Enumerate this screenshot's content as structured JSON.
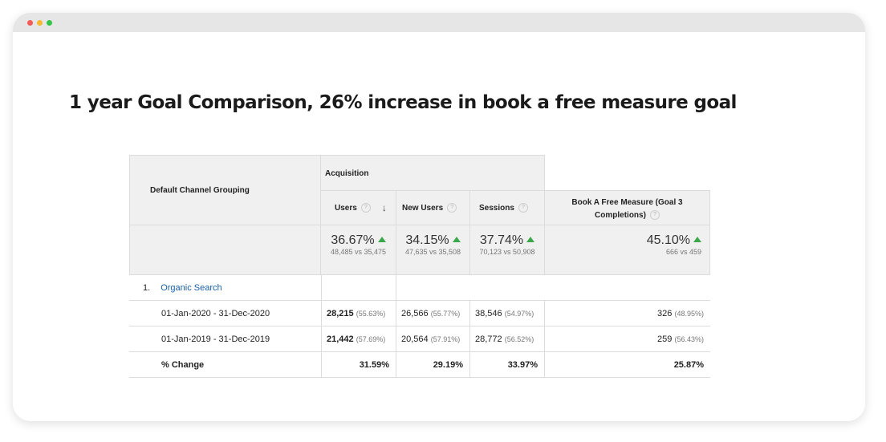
{
  "headline": "1 year Goal Comparison, 26% increase in book a free measure goal",
  "colors": {
    "accent_up": "#3aa84a",
    "link": "#1a5fa8",
    "header_bg": "#f0f0f0"
  },
  "icons": {
    "sort": "arrow-down-icon",
    "help": "question-icon",
    "up": "arrow-up-icon"
  },
  "table": {
    "dimension_header": "Default Channel Grouping",
    "group_header": "Acquisition",
    "columns": [
      {
        "label": "Users",
        "help": "?",
        "sort": "↓"
      },
      {
        "label": "New Users",
        "help": "?"
      },
      {
        "label": "Sessions",
        "help": "?"
      },
      {
        "label_line1": "Book A Free Measure (Goal 3",
        "label_line2": "Completions)",
        "help": "?"
      }
    ],
    "summary": [
      {
        "change": "36.67%",
        "compare": "48,485 vs 35,475"
      },
      {
        "change": "34.15%",
        "compare": "47,635 vs 35,508"
      },
      {
        "change": "37.74%",
        "compare": "70,123 vs 50,908"
      },
      {
        "change": "45.10%",
        "compare": "666 vs 459"
      }
    ],
    "channel": {
      "index": "1.",
      "name": "Organic Search"
    },
    "rows": [
      {
        "label": "01-Jan-2020 - 31-Dec-2020",
        "cells": [
          {
            "value": "28,215",
            "pct": "(55.63%)"
          },
          {
            "value": "26,566",
            "pct": "(55.77%)"
          },
          {
            "value": "38,546",
            "pct": "(54.97%)"
          },
          {
            "value": "326",
            "pct": "(48.95%)"
          }
        ]
      },
      {
        "label": "01-Jan-2019 - 31-Dec-2019",
        "cells": [
          {
            "value": "21,442",
            "pct": "(57.69%)"
          },
          {
            "value": "20,564",
            "pct": "(57.91%)"
          },
          {
            "value": "28,772",
            "pct": "(56.52%)"
          },
          {
            "value": "259",
            "pct": "(56.43%)"
          }
        ]
      }
    ],
    "change_row": {
      "label": "% Change",
      "values": [
        "31.59%",
        "29.19%",
        "33.97%",
        "25.87%"
      ]
    }
  }
}
